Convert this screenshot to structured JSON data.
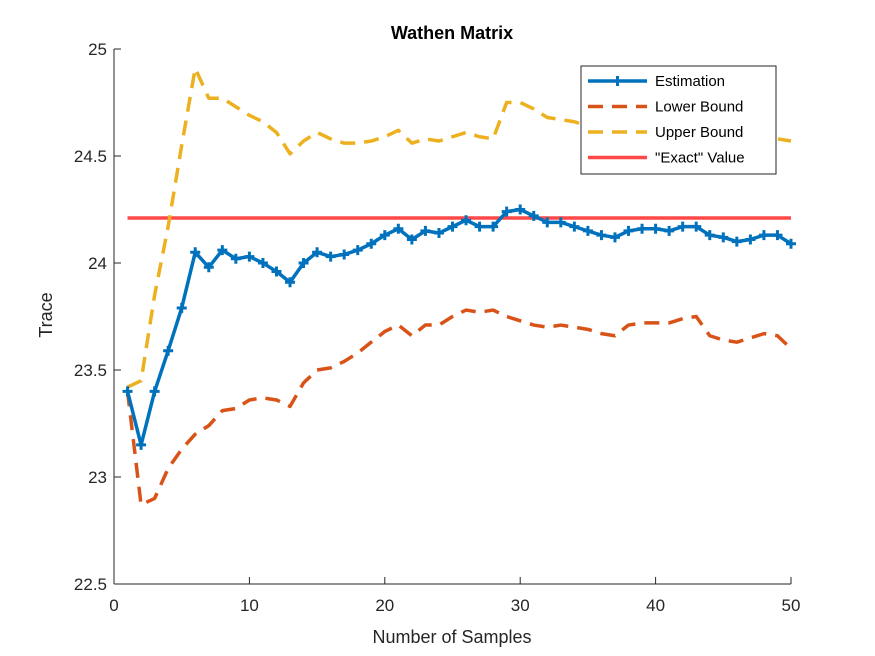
{
  "chart_data": {
    "type": "line",
    "title": "Wathen Matrix",
    "xlabel": "Number of Samples",
    "ylabel": "Trace",
    "xlim": [
      0,
      50
    ],
    "ylim": [
      22.5,
      25
    ],
    "xticks": [
      "0",
      "10",
      "20",
      "30",
      "40",
      "50"
    ],
    "yticks": [
      "22.5",
      "23",
      "23.5",
      "24",
      "24.5",
      "25"
    ],
    "grid": false,
    "legend_position": "top-right",
    "x": [
      1,
      2,
      3,
      4,
      5,
      6,
      7,
      8,
      9,
      10,
      11,
      12,
      13,
      14,
      15,
      16,
      17,
      18,
      19,
      20,
      21,
      22,
      23,
      24,
      25,
      26,
      27,
      28,
      29,
      30,
      31,
      32,
      33,
      34,
      35,
      36,
      37,
      38,
      39,
      40,
      41,
      42,
      43,
      44,
      45,
      46,
      47,
      48,
      49,
      50
    ],
    "series": [
      {
        "name": "Estimation",
        "color": "#0072BD",
        "style": "solid-plus-markers",
        "values": [
          23.4,
          23.15,
          23.4,
          23.59,
          23.79,
          24.05,
          23.98,
          24.06,
          24.02,
          24.03,
          24.0,
          23.96,
          23.91,
          24.0,
          24.05,
          24.03,
          24.04,
          24.06,
          24.09,
          24.13,
          24.16,
          24.11,
          24.15,
          24.14,
          24.17,
          24.2,
          24.17,
          24.17,
          24.24,
          24.25,
          24.22,
          24.19,
          24.19,
          24.17,
          24.15,
          24.13,
          24.12,
          24.15,
          24.16,
          24.16,
          24.15,
          24.17,
          24.17,
          24.13,
          24.12,
          24.1,
          24.11,
          24.13,
          24.13,
          24.09
        ]
      },
      {
        "name": "Lower Bound",
        "color": "#D95319",
        "style": "dashed",
        "values": [
          23.4,
          22.87,
          22.9,
          23.04,
          23.13,
          23.2,
          23.24,
          23.31,
          23.32,
          23.36,
          23.37,
          23.36,
          23.33,
          23.44,
          23.5,
          23.51,
          23.54,
          23.58,
          23.63,
          23.68,
          23.71,
          23.66,
          23.71,
          23.71,
          23.75,
          23.78,
          23.77,
          23.78,
          23.75,
          23.73,
          23.71,
          23.7,
          23.71,
          23.7,
          23.69,
          23.67,
          23.66,
          23.71,
          23.72,
          23.72,
          23.72,
          23.74,
          23.75,
          23.66,
          23.64,
          23.63,
          23.65,
          23.67,
          23.66,
          23.6
        ]
      },
      {
        "name": "Upper Bound",
        "color": "#EDB120",
        "style": "dashed",
        "values": [
          23.42,
          23.45,
          23.85,
          24.17,
          24.55,
          24.91,
          24.77,
          24.77,
          24.73,
          24.69,
          24.66,
          24.61,
          24.51,
          24.57,
          24.61,
          24.58,
          24.56,
          24.56,
          24.57,
          24.59,
          24.62,
          24.56,
          24.58,
          24.57,
          24.59,
          24.61,
          24.59,
          24.58,
          24.75,
          24.75,
          24.72,
          24.68,
          24.67,
          24.66,
          24.64,
          24.63,
          24.62,
          24.63,
          24.64,
          24.64,
          24.63,
          24.63,
          24.62,
          24.61,
          24.6,
          24.59,
          24.59,
          24.59,
          24.58,
          24.57
        ]
      },
      {
        "name": "\"Exact\" Value",
        "color": "#FF4848",
        "style": "solid",
        "values": [
          24.21,
          24.21,
          24.21,
          24.21,
          24.21,
          24.21,
          24.21,
          24.21,
          24.21,
          24.21,
          24.21,
          24.21,
          24.21,
          24.21,
          24.21,
          24.21,
          24.21,
          24.21,
          24.21,
          24.21,
          24.21,
          24.21,
          24.21,
          24.21,
          24.21,
          24.21,
          24.21,
          24.21,
          24.21,
          24.21,
          24.21,
          24.21,
          24.21,
          24.21,
          24.21,
          24.21,
          24.21,
          24.21,
          24.21,
          24.21,
          24.21,
          24.21,
          24.21,
          24.21,
          24.21,
          24.21,
          24.21,
          24.21,
          24.21,
          24.21
        ]
      }
    ]
  }
}
